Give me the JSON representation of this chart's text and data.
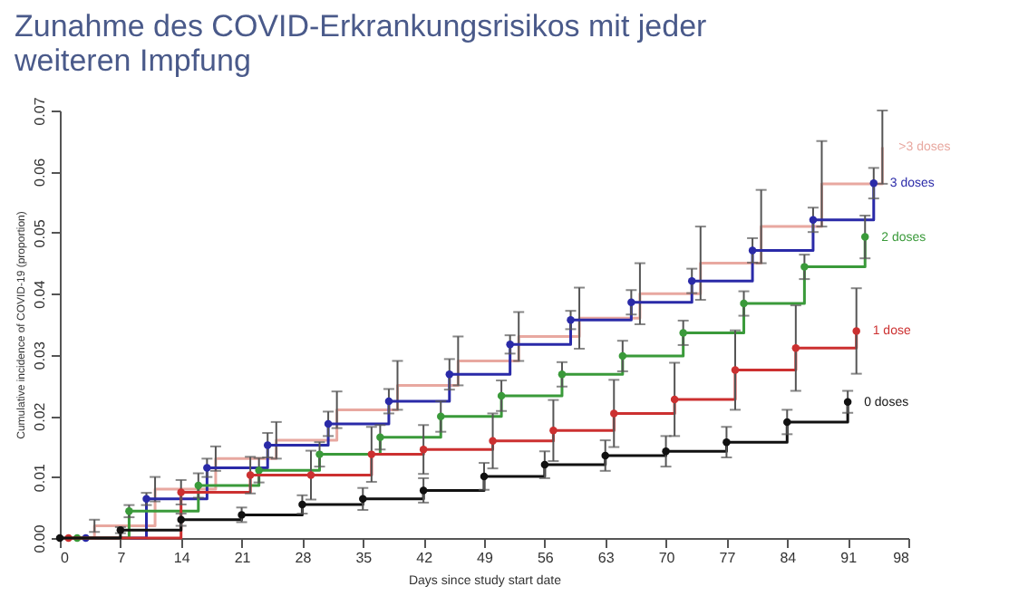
{
  "chart_data": {
    "type": "step",
    "title": "Zunahme des COVID-Erkrankungsrisikos mit jeder weiteren Impfung",
    "xlabel": "Days since study start date",
    "ylabel": "Cumulative incidence of COVID-19 (proportion)",
    "xlim": [
      0,
      98
    ],
    "xticks": [
      0,
      7,
      14,
      21,
      28,
      35,
      42,
      49,
      56,
      63,
      70,
      77,
      84,
      91,
      98
    ],
    "ylim": [
      0,
      0.07
    ],
    "yticks": [
      {
        "value": 0,
        "label": "0.00"
      },
      0.01,
      0.02,
      0.03,
      0.04,
      0.05,
      0.06,
      0.07
    ],
    "grid": false,
    "legend": false,
    "series": [
      {
        "name": ">3 doses",
        "color": "#e8a8a0",
        "marker": "none",
        "x": [
          0,
          4,
          11,
          18,
          25,
          32,
          39,
          46,
          53,
          60,
          67,
          74,
          81,
          88,
          95
        ],
        "values": [
          0,
          0.002,
          0.008,
          0.013,
          0.016,
          0.021,
          0.025,
          0.029,
          0.033,
          0.036,
          0.04,
          0.045,
          0.051,
          0.058,
          0.064
        ],
        "errors": [
          null,
          0.001,
          0.002,
          0.002,
          0.003,
          0.003,
          0.004,
          0.004,
          0.004,
          0.005,
          0.005,
          0.006,
          0.006,
          0.007,
          0.006
        ]
      },
      {
        "name": "3 doses",
        "color": "#2a2aa8",
        "marker": "circle",
        "x": [
          3,
          10,
          17,
          24,
          31,
          38,
          45,
          52,
          59,
          66,
          73,
          80,
          87,
          94
        ],
        "values": [
          0,
          0.0064,
          0.0115,
          0.0152,
          0.0187,
          0.0224,
          0.0268,
          0.0317,
          0.0357,
          0.0386,
          0.0421,
          0.0471,
          0.0521,
          0.0581
        ],
        "errors": [
          null,
          0.001,
          0.0015,
          0.002,
          0.002,
          0.002,
          0.0025,
          0.0015,
          0.0015,
          0.002,
          0.002,
          0.002,
          0.002,
          0.0025
        ]
      },
      {
        "name": "2 doses",
        "color": "#3a9a3a",
        "marker": "circle",
        "x": [
          2,
          8,
          16,
          23,
          30,
          37,
          44,
          51,
          58,
          65,
          72,
          79,
          86,
          93
        ],
        "values": [
          0,
          0.0044,
          0.0086,
          0.0111,
          0.0137,
          0.0165,
          0.0199,
          0.0233,
          0.0268,
          0.0298,
          0.0336,
          0.0384,
          0.0444,
          0.0493
        ],
        "errors": [
          null,
          0.001,
          0.002,
          0.002,
          0.002,
          0.002,
          0.0025,
          0.0025,
          0.002,
          0.0025,
          0.002,
          0.002,
          0.002,
          0.0035
        ]
      },
      {
        "name": "1 dose",
        "color": "#cc3030",
        "marker": "circle",
        "x": [
          1,
          14,
          22,
          29,
          36,
          42,
          50,
          57,
          64,
          71,
          78,
          85,
          92
        ],
        "values": [
          0,
          0.0075,
          0.0103,
          0.0103,
          0.0137,
          0.0145,
          0.0159,
          0.0176,
          0.0204,
          0.0227,
          0.0275,
          0.0311,
          0.0339
        ],
        "errors": [
          null,
          0.002,
          0.003,
          0.004,
          0.0045,
          0.004,
          0.0045,
          0.005,
          0.0055,
          0.006,
          0.0065,
          0.007,
          0.007
        ]
      },
      {
        "name": "0 doses",
        "color": "#111111",
        "marker": "circle",
        "x": [
          0,
          7,
          14,
          21,
          28,
          35,
          42,
          49,
          56,
          63,
          70,
          77,
          84,
          91
        ],
        "values": [
          0,
          0.0013,
          0.003,
          0.0038,
          0.0055,
          0.0064,
          0.0078,
          0.0101,
          0.012,
          0.0135,
          0.0142,
          0.0157,
          0.019,
          0.0223
        ],
        "errors": [
          null,
          0.0005,
          0.001,
          0.0012,
          0.0015,
          0.0018,
          0.002,
          0.0022,
          0.0022,
          0.0025,
          0.0025,
          0.0025,
          0.002,
          0.0018
        ]
      }
    ]
  }
}
